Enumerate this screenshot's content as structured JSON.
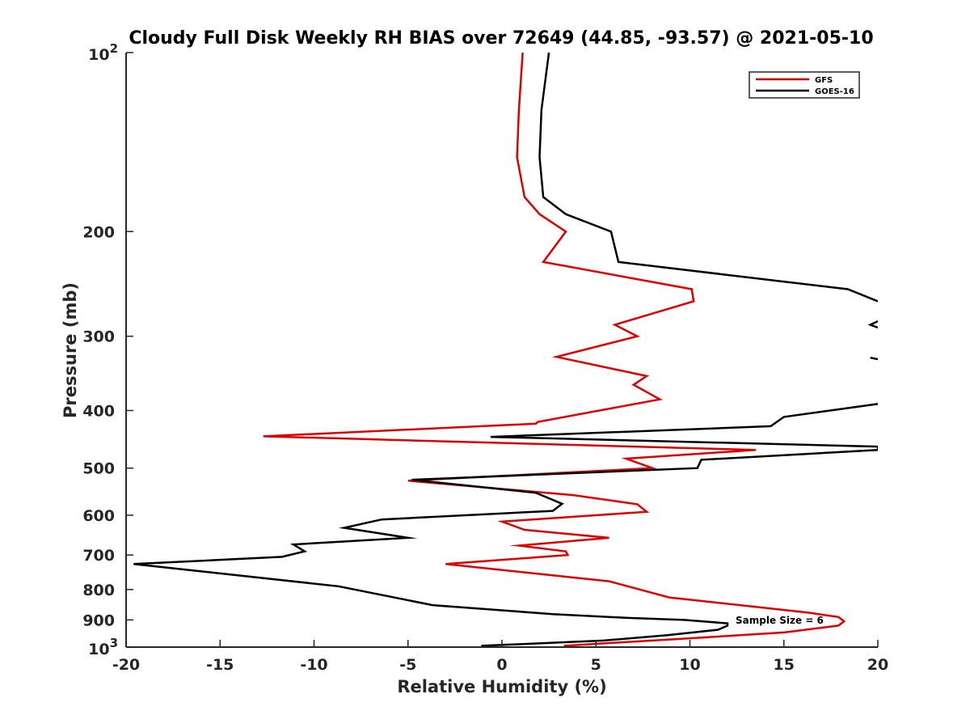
{
  "chart_data": {
    "type": "line",
    "title": "Cloudy Full Disk Weekly RH BIAS over 72649 (44.85, -93.57) @ 2021-05-10",
    "xlabel": "Relative Humidity (%)",
    "ylabel": "Pressure (mb)",
    "xlim": [
      -20,
      20
    ],
    "ylim": [
      100,
      1000
    ],
    "yscale": "log",
    "y_reversed": true,
    "x_ticks": [
      {
        "value": -20,
        "label": "-20"
      },
      {
        "value": -15,
        "label": "-15"
      },
      {
        "value": -10,
        "label": "-10"
      },
      {
        "value": -5,
        "label": "-5"
      },
      {
        "value": 0,
        "label": "0"
      },
      {
        "value": 5,
        "label": "5"
      },
      {
        "value": 10,
        "label": "10"
      },
      {
        "value": 15,
        "label": "15"
      },
      {
        "value": 20,
        "label": "20"
      }
    ],
    "y_ticks": [
      {
        "value": 100,
        "label": "10",
        "exp": "2"
      },
      {
        "value": 200,
        "label": "200"
      },
      {
        "value": 300,
        "label": "300"
      },
      {
        "value": 400,
        "label": "400"
      },
      {
        "value": 500,
        "label": "500"
      },
      {
        "value": 600,
        "label": "600"
      },
      {
        "value": 700,
        "label": "700"
      },
      {
        "value": 800,
        "label": "800"
      },
      {
        "value": 900,
        "label": "900"
      },
      {
        "value": 1000,
        "label": "10",
        "exp": "3"
      }
    ],
    "grid": false,
    "legend_position": "top-right",
    "annotation": "Sample Size = 6",
    "series": [
      {
        "name": "GFS",
        "color": "#e00000",
        "points": [
          [
            1.1,
            100
          ],
          [
            0.9,
            125
          ],
          [
            0.8,
            150
          ],
          [
            1.2,
            175
          ],
          [
            2.0,
            187
          ],
          [
            3.4,
            200
          ],
          [
            2.2,
            225
          ],
          [
            10.1,
            250
          ],
          [
            10.2,
            262
          ],
          [
            6.0,
            287
          ],
          [
            7.2,
            300
          ],
          [
            2.9,
            325
          ],
          [
            7.7,
            350
          ],
          [
            7.0,
            362
          ],
          [
            8.4,
            383
          ],
          [
            1.9,
            418
          ],
          [
            1.8,
            421
          ],
          [
            -12.7,
            442
          ],
          [
            13.5,
            466
          ],
          [
            6.6,
            482
          ],
          [
            8.0,
            500
          ],
          [
            -5.0,
            525
          ],
          [
            3.8,
            555
          ],
          [
            7.2,
            575
          ],
          [
            7.7,
            592
          ],
          [
            0.0,
            615
          ],
          [
            1.2,
            635
          ],
          [
            5.7,
            655
          ],
          [
            0.9,
            675
          ],
          [
            3.4,
            690
          ],
          [
            3.5,
            700
          ],
          [
            -3.0,
            725
          ],
          [
            5.7,
            775
          ],
          [
            8.9,
            825
          ],
          [
            16.3,
            875
          ],
          [
            17.9,
            890
          ],
          [
            18.2,
            905
          ],
          [
            17.9,
            920
          ],
          [
            15.0,
            945
          ],
          [
            9.2,
            970
          ],
          [
            5.5,
            985
          ],
          [
            3.3,
            995
          ]
        ]
      },
      {
        "name": "GOES-16",
        "color": "#000000",
        "points": [
          [
            2.5,
            100
          ],
          [
            2.1,
            125
          ],
          [
            2.0,
            150
          ],
          [
            2.2,
            175
          ],
          [
            3.4,
            187
          ],
          [
            5.8,
            200
          ],
          [
            6.2,
            225
          ],
          [
            18.4,
            250
          ],
          [
            20.0,
            262
          ],
          null,
          [
            20.0,
            283
          ],
          [
            19.6,
            287
          ],
          [
            20.0,
            290
          ],
          null,
          [
            19.6,
            326
          ],
          [
            20.0,
            328
          ],
          null,
          [
            20.0,
            390
          ],
          [
            15.0,
            410
          ],
          [
            14.3,
            425
          ],
          [
            -0.6,
            443
          ],
          [
            20.0,
            460
          ],
          [
            20.0,
            466
          ],
          [
            10.6,
            484
          ],
          [
            10.4,
            500
          ],
          [
            -4.8,
            523
          ],
          [
            1.8,
            550
          ],
          [
            3.2,
            574
          ],
          [
            2.7,
            590
          ],
          [
            -6.4,
            610
          ],
          [
            -8.4,
            630
          ],
          [
            -5.0,
            655
          ],
          [
            -11.1,
            672
          ],
          [
            -10.5,
            690
          ],
          [
            -11.7,
            705
          ],
          [
            -19.6,
            725
          ],
          [
            -8.7,
            790
          ],
          [
            -3.7,
            850
          ],
          [
            2.7,
            880
          ],
          [
            6.7,
            893
          ],
          [
            9.7,
            900
          ],
          [
            12.0,
            912
          ],
          [
            12.0,
            920
          ],
          [
            11.5,
            935
          ],
          [
            8.8,
            955
          ],
          [
            5.4,
            975
          ],
          [
            -1.1,
            995
          ]
        ]
      }
    ]
  }
}
